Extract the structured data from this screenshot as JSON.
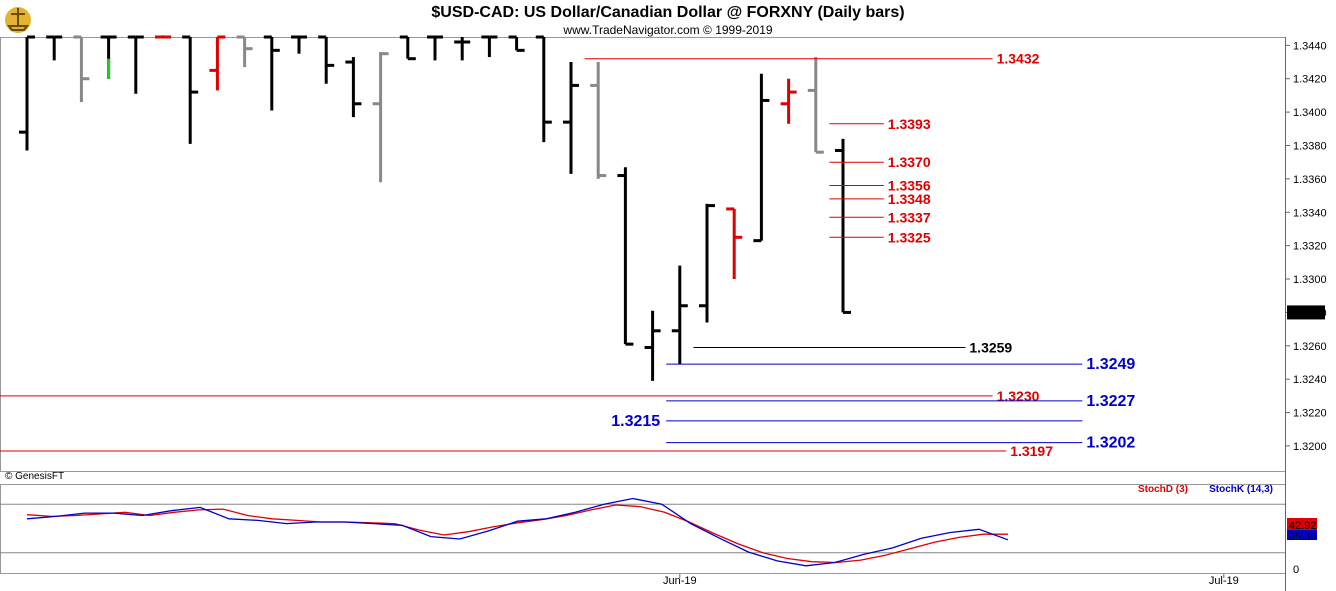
{
  "header": {
    "title": "$USD-CAD:  US Dollar/Canadian Dollar @ FORXNY  (Daily bars)",
    "subtitle": "www.TradeNavigator.com © 1999-2019",
    "copyright": "© GenesisFT"
  },
  "colors": {
    "up": "#000000",
    "down": "#e00000",
    "neutral": "#888888",
    "green": "#22cc22",
    "red": "#e00000",
    "blue": "#0000cc"
  },
  "chart_data": [
    {
      "type": "ohlc",
      "ylim": [
        1.3185,
        1.3445
      ],
      "y_ticks": [
        "1.3440",
        "1.3420",
        "1.3400",
        "1.3380",
        "1.3360",
        "1.3340",
        "1.3320",
        "1.3300",
        "1.3280",
        "1.3260",
        "1.3240",
        "1.3220",
        "1.3200"
      ],
      "x_tick_labels": [
        {
          "index": 24,
          "label": "Jun-19"
        },
        {
          "index": 44,
          "label": "Jul-19"
        }
      ],
      "last_price": "1.3280",
      "bars": [
        {
          "o": 1.3388,
          "h": 1.345,
          "l": 1.3377,
          "c": 1.345,
          "color": "black"
        },
        {
          "o": 1.345,
          "h": 1.345,
          "l": 1.3431,
          "c": 1.345,
          "color": "black"
        },
        {
          "o": 1.345,
          "h": 1.345,
          "l": 1.3406,
          "c": 1.342,
          "color": "gray"
        },
        {
          "o": 1.345,
          "h": 1.345,
          "l": 1.342,
          "c": 1.345,
          "color": "black",
          "wick": "green"
        },
        {
          "o": 1.345,
          "h": 1.345,
          "l": 1.3411,
          "c": 1.345,
          "color": "black"
        },
        {
          "o": 1.345,
          "h": 1.345,
          "l": 1.3446,
          "c": 1.345,
          "color": "red"
        },
        {
          "o": 1.345,
          "h": 1.345,
          "l": 1.3381,
          "c": 1.3412,
          "color": "black"
        },
        {
          "o": 1.3425,
          "h": 1.345,
          "l": 1.3413,
          "c": 1.345,
          "color": "red"
        },
        {
          "o": 1.345,
          "h": 1.345,
          "l": 1.3427,
          "c": 1.3438,
          "color": "gray"
        },
        {
          "o": 1.345,
          "h": 1.345,
          "l": 1.3401,
          "c": 1.3437,
          "color": "black"
        },
        {
          "o": 1.345,
          "h": 1.345,
          "l": 1.3435,
          "c": 1.345,
          "color": "black"
        },
        {
          "o": 1.345,
          "h": 1.345,
          "l": 1.3417,
          "c": 1.3428,
          "color": "black"
        },
        {
          "o": 1.343,
          "h": 1.3433,
          "l": 1.3397,
          "c": 1.3405,
          "color": "black"
        },
        {
          "o": 1.3405,
          "h": 1.3436,
          "l": 1.3358,
          "c": 1.3435,
          "color": "gray"
        },
        {
          "o": 1.345,
          "h": 1.345,
          "l": 1.3432,
          "c": 1.3432,
          "color": "black"
        },
        {
          "o": 1.345,
          "h": 1.345,
          "l": 1.3431,
          "c": 1.345,
          "color": "black"
        },
        {
          "o": 1.3442,
          "h": 1.345,
          "l": 1.3431,
          "c": 1.3442,
          "color": "black"
        },
        {
          "o": 1.345,
          "h": 1.345,
          "l": 1.3433,
          "c": 1.345,
          "color": "black"
        },
        {
          "o": 1.345,
          "h": 1.345,
          "l": 1.3437,
          "c": 1.3437,
          "color": "black"
        },
        {
          "o": 1.345,
          "h": 1.345,
          "l": 1.3382,
          "c": 1.3394,
          "color": "black"
        },
        {
          "o": 1.3394,
          "h": 1.343,
          "l": 1.3363,
          "c": 1.3416,
          "color": "black"
        },
        {
          "o": 1.3416,
          "h": 1.343,
          "l": 1.336,
          "c": 1.3362,
          "color": "gray"
        },
        {
          "o": 1.3362,
          "h": 1.3367,
          "l": 1.3261,
          "c": 1.3261,
          "color": "black"
        },
        {
          "o": 1.3259,
          "h": 1.3281,
          "l": 1.3239,
          "c": 1.3269,
          "color": "black"
        },
        {
          "o": 1.3269,
          "h": 1.3308,
          "l": 1.3249,
          "c": 1.3284,
          "color": "black"
        },
        {
          "o": 1.3284,
          "h": 1.3345,
          "l": 1.3274,
          "c": 1.3344,
          "color": "black"
        },
        {
          "o": 1.3342,
          "h": 1.3342,
          "l": 1.33,
          "c": 1.3325,
          "color": "red"
        },
        {
          "o": 1.3323,
          "h": 1.3423,
          "l": 1.3323,
          "c": 1.3407,
          "color": "black"
        },
        {
          "o": 1.3405,
          "h": 1.342,
          "l": 1.3393,
          "c": 1.3412,
          "color": "red"
        },
        {
          "o": 1.3413,
          "h": 1.3433,
          "l": 1.3376,
          "c": 1.3376,
          "color": "gray"
        },
        {
          "o": 1.3377,
          "h": 1.3384,
          "l": 1.328,
          "c": 1.328,
          "color": "black"
        }
      ],
      "levels": [
        {
          "value": 1.3432,
          "label": "1.3432",
          "color": "red",
          "start_index": 20.5,
          "end_index": 35.5
        },
        {
          "value": 1.3393,
          "label": "1.3393",
          "color": "red",
          "start_index": 29.5,
          "end_index": 31.5
        },
        {
          "value": 1.337,
          "label": "1.3370",
          "color": "red",
          "start_index": 29.5,
          "end_index": 31.5
        },
        {
          "value": 1.3356,
          "label": "1.3356",
          "color": "red",
          "start_index": 29.5,
          "end_index": 31.5
        },
        {
          "value": 1.3348,
          "label": "1.3348",
          "color": "red",
          "start_index": 29.5,
          "end_index": 31.5
        },
        {
          "value": 1.3337,
          "label": "1.3337",
          "color": "red",
          "start_index": 29.5,
          "end_index": 31.5
        },
        {
          "value": 1.3325,
          "label": "1.3325",
          "color": "red",
          "start_index": 29.5,
          "end_index": 31.5
        },
        {
          "value": 1.3259,
          "label": "1.3259",
          "color": "black",
          "start_index": 24.5,
          "end_index": 34.5
        },
        {
          "value": 1.3249,
          "label": "1.3249",
          "color": "blue",
          "start_index": 23.5,
          "end_index": 38.8
        },
        {
          "value": 1.323,
          "label": "1.3230",
          "color": "red",
          "start_index": -1,
          "end_index": 35.5
        },
        {
          "value": 1.3227,
          "label": "1.3227",
          "color": "blue",
          "start_index": 23.5,
          "end_index": 38.8
        },
        {
          "value": 1.3215,
          "label": "1.3215",
          "color": "blue",
          "start_index": 23.5,
          "end_index": 38.8,
          "label_side": "left"
        },
        {
          "value": 1.3202,
          "label": "1.3202",
          "color": "blue",
          "start_index": 23.5,
          "end_index": 38.8
        },
        {
          "value": 1.3197,
          "label": "1.3197",
          "color": "red",
          "start_index": -1,
          "end_index": 36
        }
      ]
    },
    {
      "type": "line",
      "indicator": "Stochastic",
      "ylim": [
        0,
        100
      ],
      "y_ticks": [
        "50",
        "0"
      ],
      "reference_lines": [
        20,
        80
      ],
      "series": [
        {
          "name": "StochD (3)",
          "color": "red",
          "values": [
            67,
            65,
            66,
            68,
            70,
            66,
            70,
            73,
            74,
            66,
            62,
            60,
            58,
            58,
            57,
            56,
            48,
            42,
            46,
            52,
            57,
            61,
            66,
            73,
            79,
            77,
            70,
            58,
            44,
            31,
            20,
            13,
            9,
            8,
            11,
            17,
            25,
            33,
            39,
            43,
            43
          ]
        },
        {
          "name": "StochK (14,3)",
          "color": "blue",
          "values": [
            62,
            65,
            69,
            69,
            66,
            72,
            76,
            62,
            60,
            56,
            58,
            58,
            56,
            54,
            40,
            37,
            47,
            59,
            62,
            70,
            80,
            87,
            80,
            56,
            38,
            21,
            10,
            4,
            8,
            18,
            26,
            38,
            45,
            49,
            36
          ]
        }
      ],
      "stochd_x_offset": 0,
      "stochk_x_offset": 0,
      "last_values": [
        "42.92",
        "35.36"
      ]
    }
  ]
}
